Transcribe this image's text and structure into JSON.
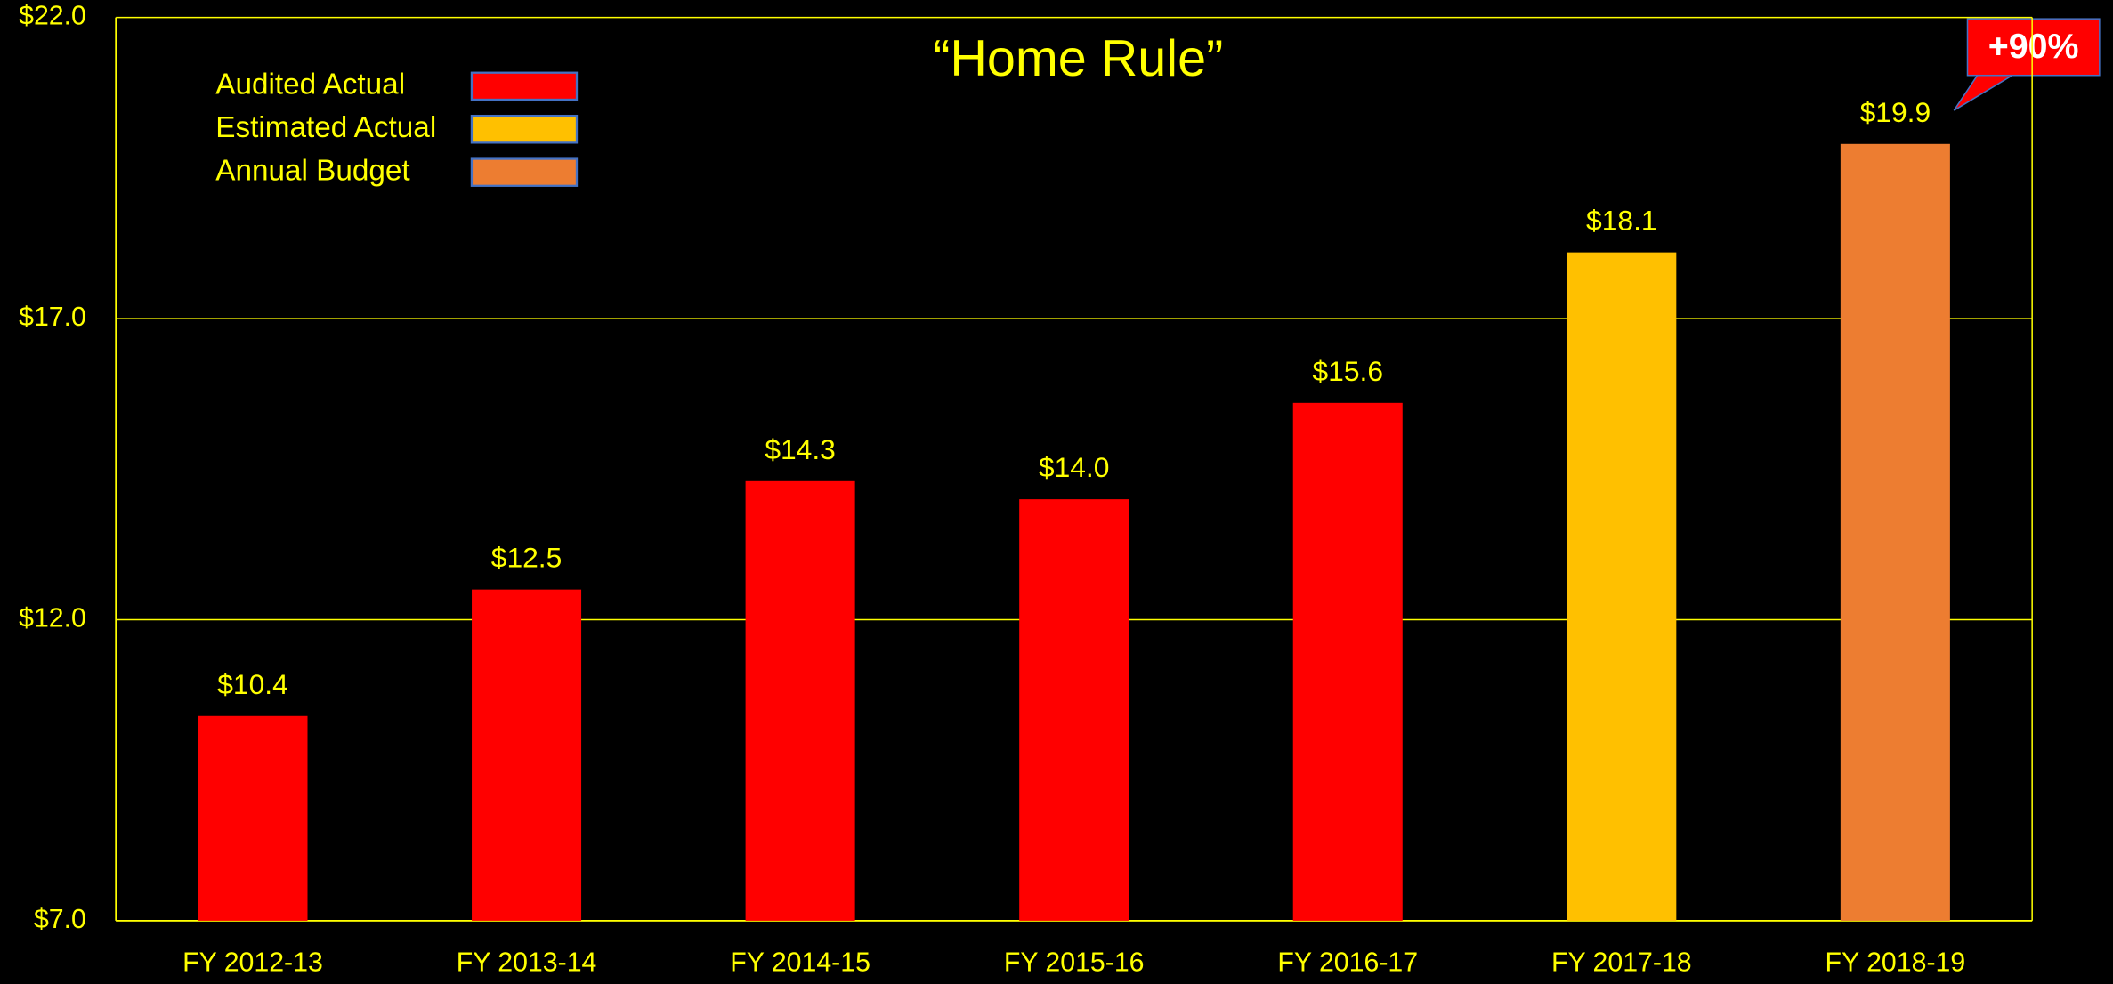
{
  "chart_data": {
    "type": "bar",
    "title": "“Home Rule”",
    "categories": [
      "FY 2012-13",
      "FY 2013-14",
      "FY 2014-15",
      "FY 2015-16",
      "FY 2016-17",
      "FY 2017-18",
      "FY 2018-19"
    ],
    "series": [
      {
        "name": "Audited Actual",
        "color": "#ff0000",
        "values": [
          10.4,
          12.5,
          14.3,
          14.0,
          15.6,
          null,
          null
        ],
        "value_labels": [
          "$10.4",
          "$12.5",
          "$14.3",
          "$14.0",
          "$15.6",
          null,
          null
        ]
      },
      {
        "name": "Estimated Actual",
        "color": "#ffc000",
        "values": [
          null,
          null,
          null,
          null,
          null,
          18.1,
          null
        ],
        "value_labels": [
          null,
          null,
          null,
          null,
          null,
          "$18.1",
          null
        ]
      },
      {
        "name": "Annual Budget",
        "color": "#ed7d31",
        "values": [
          null,
          null,
          null,
          null,
          null,
          null,
          19.9
        ],
        "value_labels": [
          null,
          null,
          null,
          null,
          null,
          null,
          "$19.9"
        ]
      }
    ],
    "ylim": [
      7,
      22
    ],
    "yticks": [
      {
        "value": 7,
        "label": "$7.0"
      },
      {
        "value": 12,
        "label": "$12.0"
      },
      {
        "value": 17,
        "label": "$17.0"
      },
      {
        "value": 22,
        "label": "$22.0"
      }
    ],
    "grid": true,
    "legend": "top-left",
    "annotations": [
      "+90%"
    ]
  }
}
